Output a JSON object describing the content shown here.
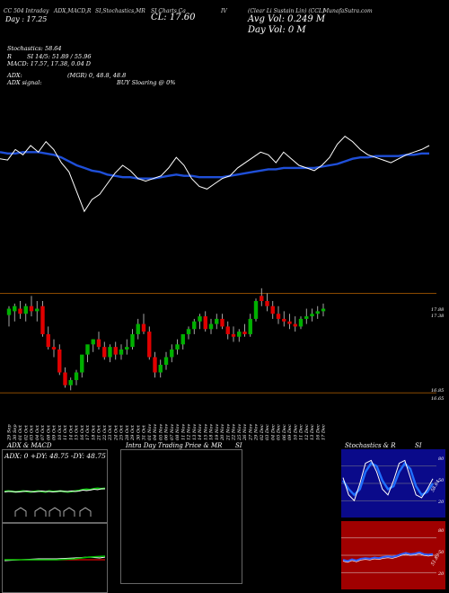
{
  "header": {
    "h1": "CC 504 Intraday",
    "h2": "ADX,MACD,R",
    "h3": "SI,Stochastics,MR",
    "h4": "SI Charts Ca",
    "h5": "IV",
    "h6": "(Clear Li Sustain Lin) (CCL)",
    "h7": "MunafaSutra.com"
  },
  "price_info": {
    "day_change": "Day : 17.25",
    "close": "CL: 17.60",
    "avg_vol": "Avg Vol: 0.249 M",
    "day_vol": "Day Vol: 0   M"
  },
  "indicators": {
    "stoch": "Stochastics: 58.64",
    "rsi": "SI 14/5: 51.89 / 55.96",
    "rsi_prefix": "R",
    "macd": "MACD: 17.57,  17.38,  0.04  D",
    "adx": "ADX:",
    "adx_vals": "(MGR) 0, 48.8, 48.8",
    "adx_signal": "ADX  signal:",
    "adx_signal_val": "BUY Sloaring @ 0%"
  },
  "price_axis": {
    "top_label": "17.88",
    "top_label2": "17.38",
    "bottom_label": "16.85",
    "bottom_label2": "16.65"
  },
  "dates": [
    "29 Sep",
    "30 Sep",
    "01 Oct",
    "02 Oct",
    "03 Oct",
    "04 Oct",
    "07 Oct",
    "08 Oct",
    "09 Oct",
    "10 Oct",
    "11 Oct",
    "14 Oct",
    "15 Oct",
    "16 Oct",
    "17 Oct",
    "18 Oct",
    "21 Oct",
    "22 Oct",
    "23 Oct",
    "24 Oct",
    "25 Oct",
    "28 Oct",
    "29 Oct",
    "30 Oct",
    "31 Oct",
    "01 Nov",
    "04 Nov",
    "05 Nov",
    "06 Nov",
    "07 Nov",
    "08 Nov",
    "11 Nov",
    "12 Nov",
    "13 Nov",
    "14 Nov",
    "15 Nov",
    "18 Nov",
    "19 Nov",
    "20 Nov",
    "21 Nov",
    "22 Nov",
    "25 Nov",
    "26 Nov",
    "27 Nov",
    "29 Nov",
    "02 Dec",
    "03 Dec",
    "04 Dec",
    "05 Dec",
    "06 Dec",
    "09 Dec",
    "10 Dec",
    "11 Dec",
    "12 Dec",
    "13 Dec",
    "16 Dec",
    "17 Dec"
  ],
  "panels": {
    "adx_title": "ADX  & MACD",
    "adx_readout": "ADX: 0   +DY: 48.75  -DY: 48.75",
    "intra_title": "Intra  Day Trading Price  & MR",
    "intra_si": "SI",
    "stoch_title": "Stochastics & R",
    "stoch_si": "SI",
    "stoch_ticks": [
      "80",
      "50",
      "20"
    ],
    "stoch_readout": "58.64",
    "rsi_ticks": [
      "80",
      "50",
      "20"
    ],
    "rsi_readout": "51.89"
  },
  "colors": {
    "up": "#00b000",
    "down": "#e00000",
    "ema": "#1f4fd8",
    "price_line": "#ffffff",
    "level": "#8a4a00",
    "rsi_bg": "#a00000",
    "stoch_blue": "#1f2fd8"
  },
  "chart_data": [
    {
      "type": "line",
      "name": "price-overlay",
      "series": [
        {
          "values": [
            17.45,
            17.44,
            17.52,
            17.48,
            17.55,
            17.5,
            17.58,
            17.52,
            17.42,
            17.35,
            17.2,
            17.05,
            17.14,
            17.18,
            17.26,
            17.34,
            17.4,
            17.36,
            17.3,
            17.28,
            17.3,
            17.32,
            17.38,
            17.46,
            17.4,
            17.3,
            17.24,
            17.22,
            17.26,
            17.3,
            17.32,
            17.38,
            17.42,
            17.46,
            17.5,
            17.48,
            17.42,
            17.5,
            17.45,
            17.4,
            17.38,
            17.36,
            17.4,
            17.46,
            17.56,
            17.62,
            17.58,
            17.52,
            17.48,
            17.46,
            17.44,
            17.42,
            17.45,
            17.48,
            17.5,
            17.52,
            17.55
          ]
        },
        {
          "values": [
            17.5,
            17.49,
            17.49,
            17.5,
            17.5,
            17.5,
            17.49,
            17.48,
            17.46,
            17.43,
            17.4,
            17.38,
            17.36,
            17.35,
            17.33,
            17.32,
            17.31,
            17.31,
            17.3,
            17.3,
            17.3,
            17.31,
            17.32,
            17.33,
            17.32,
            17.32,
            17.31,
            17.31,
            17.31,
            17.31,
            17.32,
            17.33,
            17.34,
            17.35,
            17.36,
            17.37,
            17.37,
            17.38,
            17.38,
            17.38,
            17.38,
            17.38,
            17.39,
            17.4,
            17.41,
            17.43,
            17.45,
            17.46,
            17.46,
            17.47,
            17.47,
            17.47,
            17.47,
            17.48,
            17.48,
            17.49,
            17.49
          ]
        }
      ]
    },
    {
      "type": "bar",
      "name": "candles",
      "categories": [
        "29 Sep",
        "30 Sep",
        "01 Oct",
        "02 Oct",
        "03 Oct",
        "04 Oct",
        "07 Oct",
        "08 Oct",
        "09 Oct",
        "10 Oct",
        "11 Oct",
        "14 Oct",
        "15 Oct",
        "16 Oct",
        "17 Oct",
        "18 Oct",
        "21 Oct",
        "22 Oct",
        "23 Oct",
        "24 Oct",
        "25 Oct",
        "28 Oct",
        "29 Oct",
        "30 Oct",
        "31 Oct",
        "01 Nov",
        "04 Nov",
        "05 Nov",
        "06 Nov",
        "07 Nov",
        "08 Nov",
        "11 Nov",
        "12 Nov",
        "13 Nov",
        "14 Nov",
        "15 Nov",
        "18 Nov",
        "19 Nov",
        "20 Nov",
        "21 Nov",
        "22 Nov",
        "25 Nov",
        "26 Nov",
        "27 Nov",
        "29 Nov",
        "02 Dec",
        "03 Dec",
        "04 Dec",
        "05 Dec",
        "06 Dec",
        "09 Dec",
        "10 Dec",
        "11 Dec",
        "12 Dec",
        "13 Dec",
        "16 Dec",
        "17 Dec"
      ],
      "series": [
        {
          "name": "open",
          "values": [
            17.55,
            17.58,
            17.6,
            17.56,
            17.62,
            17.58,
            17.62,
            17.4,
            17.3,
            17.28,
            17.1,
            17.0,
            17.04,
            17.1,
            17.24,
            17.32,
            17.36,
            17.3,
            17.22,
            17.3,
            17.24,
            17.28,
            17.3,
            17.4,
            17.48,
            17.42,
            17.22,
            17.1,
            17.16,
            17.22,
            17.28,
            17.32,
            17.4,
            17.44,
            17.5,
            17.54,
            17.44,
            17.48,
            17.52,
            17.46,
            17.4,
            17.38,
            17.42,
            17.4,
            17.52,
            17.7,
            17.66,
            17.62,
            17.56,
            17.52,
            17.5,
            17.48,
            17.46,
            17.52,
            17.54,
            17.56,
            17.58
          ]
        },
        {
          "name": "high",
          "values": [
            17.62,
            17.64,
            17.66,
            17.64,
            17.7,
            17.66,
            17.66,
            17.46,
            17.36,
            17.32,
            17.14,
            17.06,
            17.12,
            17.18,
            17.3,
            17.36,
            17.42,
            17.34,
            17.32,
            17.34,
            17.32,
            17.36,
            17.44,
            17.52,
            17.56,
            17.46,
            17.26,
            17.2,
            17.26,
            17.32,
            17.36,
            17.4,
            17.46,
            17.52,
            17.56,
            17.58,
            17.52,
            17.56,
            17.56,
            17.5,
            17.46,
            17.44,
            17.48,
            17.56,
            17.68,
            17.76,
            17.72,
            17.66,
            17.62,
            17.58,
            17.56,
            17.54,
            17.54,
            17.6,
            17.6,
            17.62,
            17.64
          ]
        },
        {
          "name": "low",
          "values": [
            17.46,
            17.5,
            17.52,
            17.5,
            17.54,
            17.5,
            17.38,
            17.28,
            17.22,
            17.08,
            16.98,
            16.96,
            17.0,
            17.06,
            17.18,
            17.26,
            17.28,
            17.2,
            17.18,
            17.2,
            17.2,
            17.24,
            17.28,
            17.36,
            17.4,
            17.2,
            17.06,
            17.06,
            17.12,
            17.18,
            17.24,
            17.28,
            17.36,
            17.4,
            17.44,
            17.42,
            17.4,
            17.44,
            17.44,
            17.36,
            17.34,
            17.34,
            17.38,
            17.38,
            17.5,
            17.62,
            17.58,
            17.52,
            17.48,
            17.46,
            17.44,
            17.42,
            17.44,
            17.48,
            17.5,
            17.52,
            17.54
          ]
        },
        {
          "name": "close",
          "values": [
            17.6,
            17.62,
            17.56,
            17.62,
            17.58,
            17.6,
            17.4,
            17.3,
            17.28,
            17.1,
            17.0,
            17.04,
            17.1,
            17.24,
            17.32,
            17.36,
            17.3,
            17.22,
            17.3,
            17.24,
            17.28,
            17.3,
            17.4,
            17.48,
            17.42,
            17.22,
            17.1,
            17.16,
            17.22,
            17.28,
            17.32,
            17.4,
            17.44,
            17.5,
            17.54,
            17.44,
            17.48,
            17.52,
            17.46,
            17.4,
            17.38,
            17.42,
            17.4,
            17.52,
            17.66,
            17.66,
            17.62,
            17.56,
            17.52,
            17.5,
            17.48,
            17.46,
            17.52,
            17.54,
            17.56,
            17.58,
            17.6
          ]
        }
      ],
      "ylim": [
        16.85,
        17.78
      ]
    },
    {
      "type": "line",
      "name": "adx",
      "series": [
        {
          "name": "+DY",
          "values": [
            48,
            49,
            48,
            47,
            48,
            49,
            48,
            47,
            48,
            49,
            48,
            47,
            49,
            48,
            48,
            49,
            48,
            47,
            48,
            49,
            50,
            52,
            53,
            52,
            54,
            55,
            54,
            55
          ]
        },
        {
          "name": "-DY",
          "values": [
            47,
            48,
            48,
            47,
            47,
            48,
            49,
            48,
            47,
            48,
            49,
            48,
            48,
            47,
            48,
            49,
            48,
            48,
            49,
            48,
            49,
            51,
            50,
            51,
            53,
            52,
            54,
            54
          ]
        }
      ],
      "ylim": [
        0,
        100
      ]
    },
    {
      "type": "line",
      "name": "stochastics",
      "series": [
        {
          "name": "%K",
          "values": [
            60,
            30,
            20,
            50,
            85,
            90,
            70,
            40,
            30,
            55,
            85,
            90,
            60,
            30,
            25,
            40,
            58
          ]
        },
        {
          "name": "%D",
          "values": [
            55,
            40,
            30,
            40,
            70,
            85,
            80,
            55,
            40,
            45,
            70,
            85,
            75,
            45,
            30,
            35,
            50
          ]
        }
      ],
      "ylim": [
        0,
        100
      ]
    },
    {
      "type": "line",
      "name": "rsi",
      "series": [
        {
          "name": "RSI",
          "values": [
            42,
            40,
            43,
            41,
            44,
            45,
            44,
            46,
            45,
            47,
            48,
            47,
            49,
            52,
            54,
            52,
            53,
            55,
            52,
            51,
            52
          ]
        }
      ],
      "ylim": [
        0,
        100
      ]
    }
  ]
}
